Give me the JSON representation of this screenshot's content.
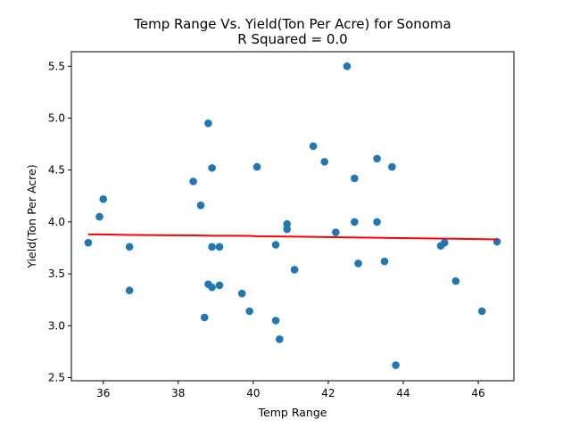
{
  "chart_data": {
    "type": "scatter",
    "title": "Temp Range Vs. Yield(Ton Per Acre) for Sonoma",
    "subtitle": "R Squared =  0.0",
    "xlabel": "Temp Range",
    "ylabel": "Yield(Ton Per Acre)",
    "xlim": [
      35.15,
      46.95
    ],
    "ylim": [
      2.47,
      5.64
    ],
    "xticks": [
      36,
      38,
      40,
      42,
      44,
      46
    ],
    "yticks": [
      2.5,
      3.0,
      3.5,
      4.0,
      4.5,
      5.0,
      5.5
    ],
    "xtick_labels": [
      "36",
      "38",
      "40",
      "42",
      "44",
      "46"
    ],
    "ytick_labels": [
      "2.5",
      "3.0",
      "3.5",
      "4.0",
      "4.5",
      "5.0",
      "5.5"
    ],
    "grid": false,
    "legend": null,
    "colors": {
      "points": "#1f77b4",
      "regression": "#ff0000"
    },
    "points": [
      {
        "x": 35.6,
        "y": 3.8
      },
      {
        "x": 35.9,
        "y": 4.05
      },
      {
        "x": 36.0,
        "y": 4.22
      },
      {
        "x": 36.7,
        "y": 3.76
      },
      {
        "x": 36.7,
        "y": 3.34
      },
      {
        "x": 38.4,
        "y": 4.39
      },
      {
        "x": 38.6,
        "y": 4.16
      },
      {
        "x": 38.7,
        "y": 3.08
      },
      {
        "x": 38.8,
        "y": 4.95
      },
      {
        "x": 38.8,
        "y": 3.4
      },
      {
        "x": 38.9,
        "y": 4.52
      },
      {
        "x": 38.9,
        "y": 3.76
      },
      {
        "x": 38.9,
        "y": 3.37
      },
      {
        "x": 39.1,
        "y": 3.76
      },
      {
        "x": 39.1,
        "y": 3.39
      },
      {
        "x": 39.7,
        "y": 3.31
      },
      {
        "x": 39.9,
        "y": 3.14
      },
      {
        "x": 40.1,
        "y": 4.53
      },
      {
        "x": 40.6,
        "y": 3.78
      },
      {
        "x": 40.6,
        "y": 3.05
      },
      {
        "x": 40.7,
        "y": 2.87
      },
      {
        "x": 40.9,
        "y": 3.98
      },
      {
        "x": 40.9,
        "y": 3.93
      },
      {
        "x": 41.1,
        "y": 3.54
      },
      {
        "x": 41.6,
        "y": 4.73
      },
      {
        "x": 41.9,
        "y": 4.58
      },
      {
        "x": 42.2,
        "y": 3.9
      },
      {
        "x": 42.5,
        "y": 5.5
      },
      {
        "x": 42.7,
        "y": 4.42
      },
      {
        "x": 42.7,
        "y": 4.0
      },
      {
        "x": 42.8,
        "y": 3.6
      },
      {
        "x": 43.3,
        "y": 4.61
      },
      {
        "x": 43.3,
        "y": 4.0
      },
      {
        "x": 43.5,
        "y": 3.62
      },
      {
        "x": 43.7,
        "y": 4.53
      },
      {
        "x": 43.8,
        "y": 2.62
      },
      {
        "x": 45.0,
        "y": 3.77
      },
      {
        "x": 45.1,
        "y": 3.8
      },
      {
        "x": 45.4,
        "y": 3.43
      },
      {
        "x": 46.1,
        "y": 3.14
      },
      {
        "x": 46.5,
        "y": 3.81
      }
    ],
    "regression_line": {
      "x": [
        35.6,
        36.0,
        36.7,
        38.4,
        38.9,
        39.9,
        40.1,
        41.1,
        42.2,
        43.3,
        43.9,
        45.4,
        46.5
      ],
      "y": [
        3.88,
        3.88,
        3.875,
        3.87,
        3.867,
        3.866,
        3.862,
        3.858,
        3.853,
        3.848,
        3.844,
        3.838,
        3.832
      ]
    }
  }
}
